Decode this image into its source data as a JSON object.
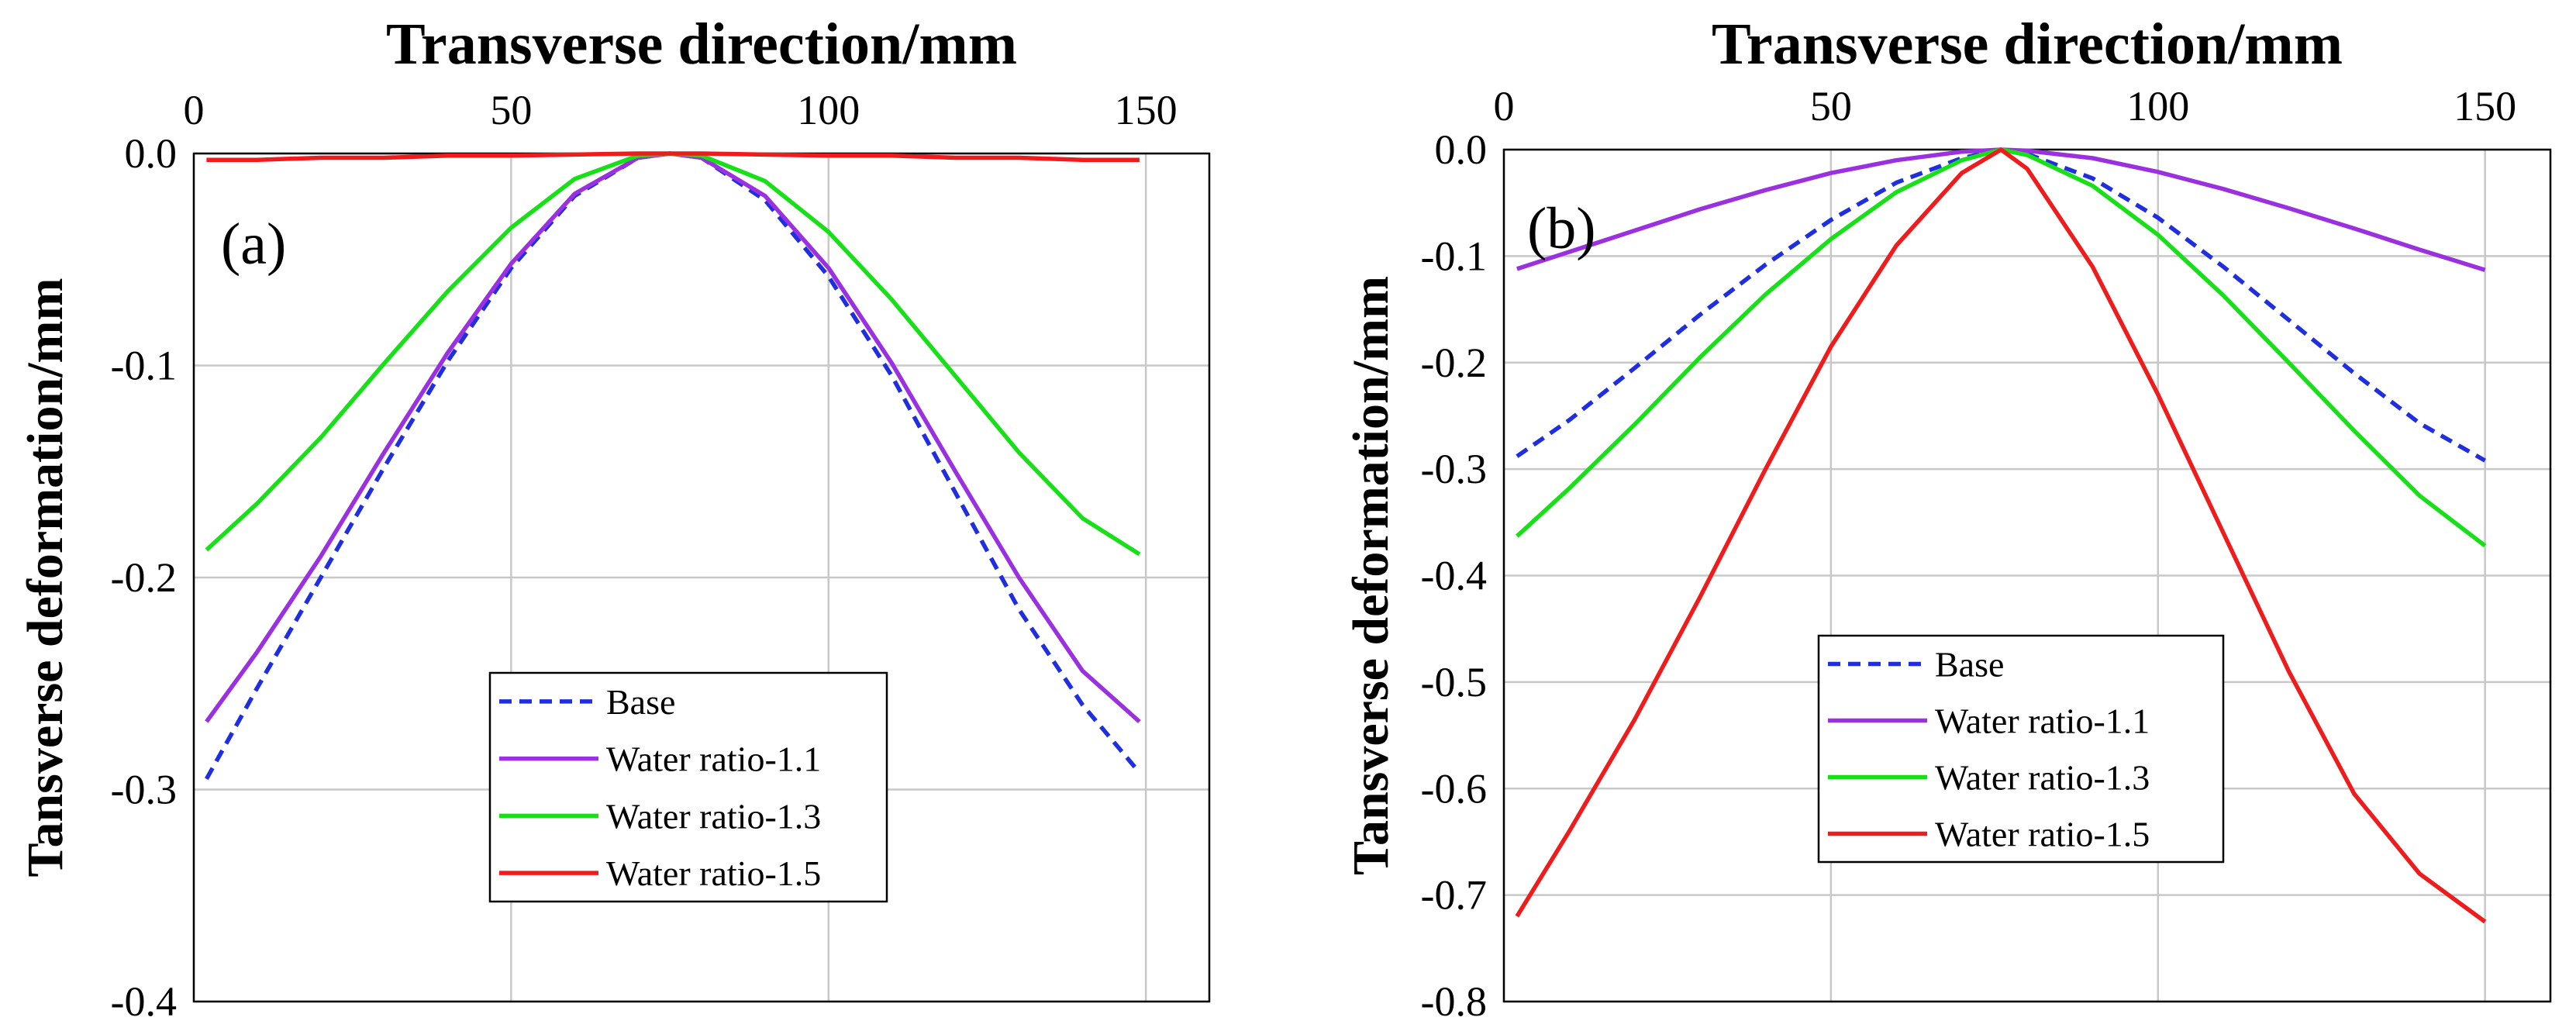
{
  "chart_data": [
    {
      "type": "line",
      "panel_label": "(a)",
      "title": "Transverse direction/mm",
      "xlabel": "",
      "ylabel": "Tansverse deformation/mm",
      "xlim": [
        0,
        160
      ],
      "ylim": [
        -0.4,
        0.0
      ],
      "x_ticks": [
        "0",
        "50",
        "100",
        "150"
      ],
      "y_ticks": [
        "0.0",
        "-0.1",
        "-0.2",
        "-0.3",
        "-0.4"
      ],
      "x_tick_values": [
        0,
        50,
        100,
        150
      ],
      "y_tick_values": [
        0.0,
        -0.1,
        -0.2,
        -0.3,
        -0.4
      ],
      "grid": true,
      "legend_position": "bottom-center",
      "x": [
        2,
        10,
        20,
        30,
        40,
        50,
        60,
        70,
        75,
        80,
        90,
        100,
        110,
        120,
        130,
        140,
        149
      ],
      "series": [
        {
          "name": "Base",
          "color": "#1f2fe0",
          "style": "dashed",
          "values": [
            -0.295,
            -0.252,
            -0.2,
            -0.148,
            -0.098,
            -0.054,
            -0.02,
            -0.002,
            0.0,
            -0.002,
            -0.022,
            -0.058,
            -0.105,
            -0.16,
            -0.215,
            -0.26,
            -0.292
          ]
        },
        {
          "name": "Water ratio-1.1",
          "color": "#9a30e0",
          "style": "solid",
          "values": [
            -0.268,
            -0.235,
            -0.19,
            -0.141,
            -0.094,
            -0.052,
            -0.019,
            -0.002,
            0.0,
            -0.002,
            -0.02,
            -0.054,
            -0.099,
            -0.15,
            -0.2,
            -0.244,
            -0.268
          ]
        },
        {
          "name": "Water ratio-1.3",
          "color": "#18e018",
          "style": "solid",
          "values": [
            -0.187,
            -0.165,
            -0.134,
            -0.099,
            -0.065,
            -0.035,
            -0.012,
            -0.001,
            0.0,
            -0.001,
            -0.013,
            -0.037,
            -0.069,
            -0.105,
            -0.141,
            -0.172,
            -0.189
          ]
        },
        {
          "name": "Water ratio-1.5",
          "color": "#ee1c1c",
          "style": "solid",
          "values": [
            -0.003,
            -0.003,
            -0.002,
            -0.002,
            -0.001,
            -0.001,
            -0.0005,
            0.0,
            0.0,
            0.0,
            -0.0005,
            -0.001,
            -0.001,
            -0.002,
            -0.002,
            -0.003,
            -0.003
          ]
        }
      ]
    },
    {
      "type": "line",
      "panel_label": "(b)",
      "title": "Transverse direction/mm",
      "xlabel": "",
      "ylabel": "Tansverse deformation/mm",
      "xlim": [
        0,
        160
      ],
      "ylim": [
        -0.8,
        0.0
      ],
      "x_ticks": [
        "0",
        "50",
        "100",
        "150"
      ],
      "y_ticks": [
        "0.0",
        "-0.1",
        "-0.2",
        "-0.3",
        "-0.4",
        "-0.5",
        "-0.6",
        "-0.7",
        "-0.8"
      ],
      "x_tick_values": [
        0,
        50,
        100,
        150
      ],
      "y_tick_values": [
        0.0,
        -0.1,
        -0.2,
        -0.3,
        -0.4,
        -0.5,
        -0.6,
        -0.7,
        -0.8
      ],
      "grid": true,
      "legend_position": "bottom-center",
      "x": [
        2,
        10,
        20,
        30,
        40,
        50,
        60,
        70,
        76,
        80,
        90,
        100,
        110,
        120,
        130,
        140,
        150
      ],
      "series": [
        {
          "name": "Base",
          "color": "#1f2fe0",
          "style": "dashed",
          "values": [
            -0.288,
            -0.254,
            -0.205,
            -0.155,
            -0.108,
            -0.066,
            -0.031,
            -0.008,
            0.0,
            -0.004,
            -0.027,
            -0.064,
            -0.11,
            -0.16,
            -0.21,
            -0.257,
            -0.292
          ]
        },
        {
          "name": "Water ratio-1.1",
          "color": "#9a30e0",
          "style": "solid",
          "values": [
            -0.112,
            -0.096,
            -0.076,
            -0.056,
            -0.038,
            -0.022,
            -0.01,
            -0.002,
            0.0,
            -0.001,
            -0.008,
            -0.021,
            -0.037,
            -0.055,
            -0.074,
            -0.094,
            -0.113
          ]
        },
        {
          "name": "Water ratio-1.3",
          "color": "#18e018",
          "style": "solid",
          "values": [
            -0.363,
            -0.318,
            -0.258,
            -0.195,
            -0.136,
            -0.084,
            -0.04,
            -0.01,
            0.0,
            -0.005,
            -0.034,
            -0.08,
            -0.137,
            -0.2,
            -0.264,
            -0.325,
            -0.372
          ]
        },
        {
          "name": "Water ratio-1.5",
          "color": "#ee1c1c",
          "style": "solid",
          "values": [
            -0.72,
            -0.64,
            -0.535,
            -0.42,
            -0.3,
            -0.185,
            -0.09,
            -0.022,
            0.0,
            -0.018,
            -0.11,
            -0.23,
            -0.36,
            -0.49,
            -0.605,
            -0.68,
            -0.725
          ]
        }
      ]
    }
  ]
}
